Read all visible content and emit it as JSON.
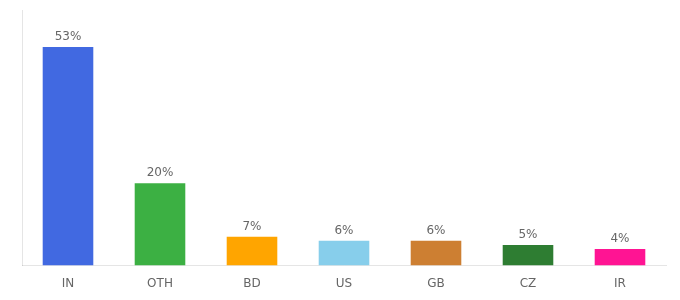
{
  "chart_data": {
    "type": "bar",
    "categories": [
      "IN",
      "OTH",
      "BD",
      "US",
      "GB",
      "CZ",
      "IR"
    ],
    "values": [
      53,
      20,
      7,
      6,
      6,
      5,
      4
    ],
    "value_labels": [
      "53%",
      "20%",
      "7%",
      "6%",
      "6%",
      "5%",
      "4%"
    ],
    "data_labels": true,
    "colors": [
      "#4169E1",
      "#3CB043",
      "#FFA500",
      "#87CEEB",
      "#CD7F32",
      "#2E7D32",
      "#FF1493"
    ],
    "ylim": [
      0,
      62
    ],
    "grid": false,
    "tick_labels": "x"
  }
}
